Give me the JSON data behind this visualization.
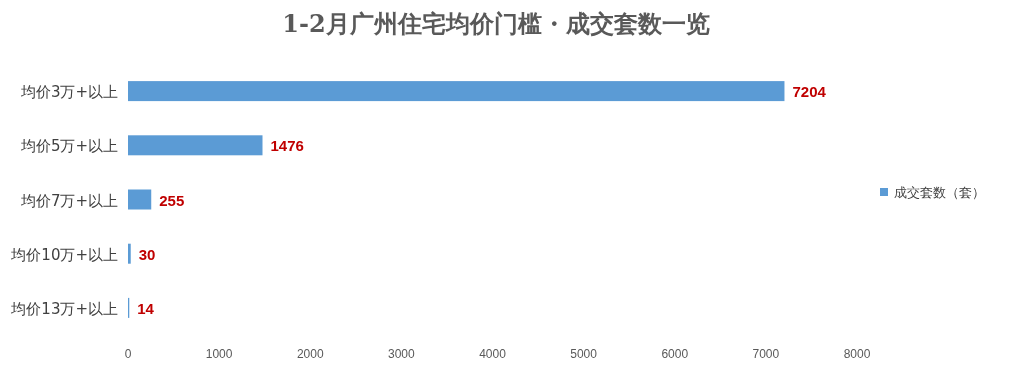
{
  "chart_data": {
    "type": "bar",
    "orientation": "horizontal",
    "title": "1-2月广州住宅均价门槛・成交套数一览",
    "categories": [
      "均价3万+以上",
      "均价5万+以上",
      "均价7万+以上",
      "均价10万+以上",
      "均价13万+以上"
    ],
    "series": [
      {
        "name": "成交套数（套）",
        "color": "#5b9bd5",
        "values": [
          7204,
          1476,
          255,
          30,
          14
        ]
      }
    ],
    "xlim": [
      0,
      8000
    ],
    "xticks": [
      0,
      1000,
      2000,
      3000,
      4000,
      5000,
      6000,
      7000,
      8000
    ],
    "data_labels": true,
    "legend": "right",
    "grid": false
  }
}
